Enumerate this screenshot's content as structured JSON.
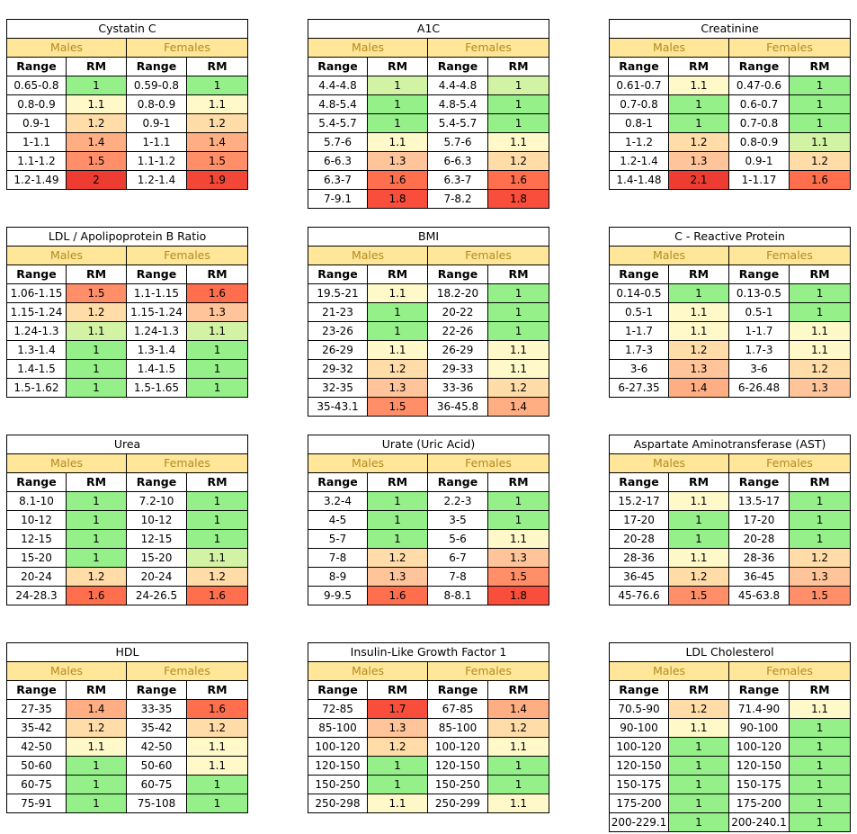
{
  "labels": {
    "males": "Males",
    "females": "Females",
    "range": "Range",
    "rm": "RM"
  },
  "colors": {
    "header_band": "#ffe699",
    "header_text": "#b58b1f",
    "rm_1": "#96f08a",
    "rm_light_green": "#d3f3a4",
    "rm_1_1": "#fff8c8",
    "rm_1_2": "#ffdca8",
    "rm_1_3": "#ffc49a",
    "rm_1_4": "#ffae83",
    "rm_1_5": "#ff8e69",
    "rm_1_6": "#ff6f4e",
    "rm_1_8": "#f84e3b",
    "rm_2": "#ee3c32"
  },
  "tables": [
    {
      "title": "Cystatin C",
      "rows": [
        {
          "mr": "0.65-0.8",
          "mv": "1",
          "fr": "0.59-0.8",
          "fv": "1"
        },
        {
          "mr": "0.8-0.9",
          "mv": "1.1",
          "fr": "0.8-0.9",
          "fv": "1.1"
        },
        {
          "mr": "0.9-1",
          "mv": "1.2",
          "fr": "0.9-1",
          "fv": "1.2"
        },
        {
          "mr": "1-1.1",
          "mv": "1.4",
          "fr": "1-1.1",
          "fv": "1.4"
        },
        {
          "mr": "1.1-1.2",
          "mv": "1.5",
          "fr": "1.1-1.2",
          "fv": "1.5"
        },
        {
          "mr": "1.2-1.49",
          "mv": "2",
          "fr": "1.2-1.4",
          "fv": "1.9"
        }
      ]
    },
    {
      "title": "A1C",
      "rows": [
        {
          "mr": "4.4-4.8",
          "mv": "1",
          "fr": "4.4-4.8",
          "fv": "1"
        },
        {
          "mr": "4.8-5.4",
          "mv": "1",
          "fr": "4.8-5.4",
          "fv": "1"
        },
        {
          "mr": "5.4-5.7",
          "mv": "1",
          "fr": "5.4-5.7",
          "fv": "1"
        },
        {
          "mr": "5.7-6",
          "mv": "1.1",
          "fr": "5.7-6",
          "fv": "1.1"
        },
        {
          "mr": "6-6.3",
          "mv": "1.3",
          "fr": "6-6.3",
          "fv": "1.2"
        },
        {
          "mr": "6.3-7",
          "mv": "1.6",
          "fr": "6.3-7",
          "fv": "1.6"
        },
        {
          "mr": "7-9.1",
          "mv": "1.8",
          "fr": "7-8.2",
          "fv": "1.8"
        }
      ]
    },
    {
      "title": "Creatinine",
      "rows": [
        {
          "mr": "0.61-0.7",
          "mv": "1.1",
          "fr": "0.47-0.6",
          "fv": "1"
        },
        {
          "mr": "0.7-0.8",
          "mv": "1",
          "fr": "0.6-0.7",
          "fv": "1"
        },
        {
          "mr": "0.8-1",
          "mv": "1",
          "fr": "0.7-0.8",
          "fv": "1"
        },
        {
          "mr": "1-1.2",
          "mv": "1.2",
          "fr": "0.8-0.9",
          "fv": "1.1"
        },
        {
          "mr": "1.2-1.4",
          "mv": "1.3",
          "fr": "0.9-1",
          "fv": "1.2"
        },
        {
          "mr": "1.4-1.48",
          "mv": "2.1",
          "fr": "1-1.17",
          "fv": "1.6"
        }
      ]
    },
    {
      "title": "LDL / Apolipoprotein B Ratio",
      "rows": [
        {
          "mr": "1.06-1.15",
          "mv": "1.5",
          "fr": "1.1-1.15",
          "fv": "1.6"
        },
        {
          "mr": "1.15-1.24",
          "mv": "1.2",
          "fr": "1.15-1.24",
          "fv": "1.3"
        },
        {
          "mr": "1.24-1.3",
          "mv": "1.1",
          "fr": "1.24-1.3",
          "fv": "1.1"
        },
        {
          "mr": "1.3-1.4",
          "mv": "1",
          "fr": "1.3-1.4",
          "fv": "1"
        },
        {
          "mr": "1.4-1.5",
          "mv": "1",
          "fr": "1.4-1.5",
          "fv": "1"
        },
        {
          "mr": "1.5-1.62",
          "mv": "1",
          "fr": "1.5-1.65",
          "fv": "1"
        }
      ]
    },
    {
      "title": "BMI",
      "rows": [
        {
          "mr": "19.5-21",
          "mv": "1.1",
          "fr": "18.2-20",
          "fv": "1"
        },
        {
          "mr": "21-23",
          "mv": "1",
          "fr": "20-22",
          "fv": "1"
        },
        {
          "mr": "23-26",
          "mv": "1",
          "fr": "22-26",
          "fv": "1"
        },
        {
          "mr": "26-29",
          "mv": "1.1",
          "fr": "26-29",
          "fv": "1.1"
        },
        {
          "mr": "29-32",
          "mv": "1.2",
          "fr": "29-33",
          "fv": "1.1"
        },
        {
          "mr": "32-35",
          "mv": "1.3",
          "fr": "33-36",
          "fv": "1.2"
        },
        {
          "mr": "35-43.1",
          "mv": "1.5",
          "fr": "36-45.8",
          "fv": "1.4"
        }
      ]
    },
    {
      "title": "C - Reactive Protein",
      "rows": [
        {
          "mr": "0.14-0.5",
          "mv": "1",
          "fr": "0.13-0.5",
          "fv": "1"
        },
        {
          "mr": "0.5-1",
          "mv": "1.1",
          "fr": "0.5-1",
          "fv": "1"
        },
        {
          "mr": "1-1.7",
          "mv": "1.1",
          "fr": "1-1.7",
          "fv": "1.1"
        },
        {
          "mr": "1.7-3",
          "mv": "1.2",
          "fr": "1.7-3",
          "fv": "1.1"
        },
        {
          "mr": "3-6",
          "mv": "1.3",
          "fr": "3-6",
          "fv": "1.2"
        },
        {
          "mr": "6-27.35",
          "mv": "1.4",
          "fr": "6-26.48",
          "fv": "1.3"
        }
      ]
    },
    {
      "title": "Urea",
      "rows": [
        {
          "mr": "8.1-10",
          "mv": "1",
          "fr": "7.2-10",
          "fv": "1"
        },
        {
          "mr": "10-12",
          "mv": "1",
          "fr": "10-12",
          "fv": "1"
        },
        {
          "mr": "12-15",
          "mv": "1",
          "fr": "12-15",
          "fv": "1"
        },
        {
          "mr": "15-20",
          "mv": "1",
          "fr": "15-20",
          "fv": "1.1"
        },
        {
          "mr": "20-24",
          "mv": "1.2",
          "fr": "20-24",
          "fv": "1.2"
        },
        {
          "mr": "24-28.3",
          "mv": "1.6",
          "fr": "24-26.5",
          "fv": "1.6"
        }
      ]
    },
    {
      "title": "Urate (Uric Acid)",
      "rows": [
        {
          "mr": "3.2-4",
          "mv": "1",
          "fr": "2.2-3",
          "fv": "1"
        },
        {
          "mr": "4-5",
          "mv": "1",
          "fr": "3-5",
          "fv": "1"
        },
        {
          "mr": "5-7",
          "mv": "1",
          "fr": "5-6",
          "fv": "1.1"
        },
        {
          "mr": "7-8",
          "mv": "1.2",
          "fr": "6-7",
          "fv": "1.3"
        },
        {
          "mr": "8-9",
          "mv": "1.3",
          "fr": "7-8",
          "fv": "1.5"
        },
        {
          "mr": "9-9.5",
          "mv": "1.6",
          "fr": "8-8.1",
          "fv": "1.8"
        }
      ]
    },
    {
      "title": "Aspartate Aminotransferase (AST)",
      "rows": [
        {
          "mr": "15.2-17",
          "mv": "1.1",
          "fr": "13.5-17",
          "fv": "1"
        },
        {
          "mr": "17-20",
          "mv": "1",
          "fr": "17-20",
          "fv": "1"
        },
        {
          "mr": "20-28",
          "mv": "1",
          "fr": "20-28",
          "fv": "1"
        },
        {
          "mr": "28-36",
          "mv": "1.1",
          "fr": "28-36",
          "fv": "1.2"
        },
        {
          "mr": "36-45",
          "mv": "1.2",
          "fr": "36-45",
          "fv": "1.3"
        },
        {
          "mr": "45-76.6",
          "mv": "1.5",
          "fr": "45-63.8",
          "fv": "1.5"
        }
      ]
    },
    {
      "title": "HDL",
      "rows": [
        {
          "mr": "27-35",
          "mv": "1.4",
          "fr": "33-35",
          "fv": "1.6"
        },
        {
          "mr": "35-42",
          "mv": "1.2",
          "fr": "35-42",
          "fv": "1.2"
        },
        {
          "mr": "42-50",
          "mv": "1.1",
          "fr": "42-50",
          "fv": "1.1"
        },
        {
          "mr": "50-60",
          "mv": "1",
          "fr": "50-60",
          "fv": "1.1"
        },
        {
          "mr": "60-75",
          "mv": "1",
          "fr": "60-75",
          "fv": "1"
        },
        {
          "mr": "75-91",
          "mv": "1",
          "fr": "75-108",
          "fv": "1"
        }
      ]
    },
    {
      "title": "Insulin-Like Growth Factor 1",
      "rows": [
        {
          "mr": "72-85",
          "mv": "1.7",
          "fr": "67-85",
          "fv": "1.4"
        },
        {
          "mr": "85-100",
          "mv": "1.3",
          "fr": "85-100",
          "fv": "1.2"
        },
        {
          "mr": "100-120",
          "mv": "1.2",
          "fr": "100-120",
          "fv": "1.1"
        },
        {
          "mr": "120-150",
          "mv": "1",
          "fr": "120-150",
          "fv": "1"
        },
        {
          "mr": "150-250",
          "mv": "1",
          "fr": "150-250",
          "fv": "1"
        },
        {
          "mr": "250-298",
          "mv": "1.1",
          "fr": "250-299",
          "fv": "1.1"
        }
      ]
    },
    {
      "title": "LDL Cholesterol",
      "rows": [
        {
          "mr": "70.5-90",
          "mv": "1.2",
          "fr": "71.4-90",
          "fv": "1.1"
        },
        {
          "mr": "90-100",
          "mv": "1.1",
          "fr": "90-100",
          "fv": "1"
        },
        {
          "mr": "100-120",
          "mv": "1",
          "fr": "100-120",
          "fv": "1"
        },
        {
          "mr": "120-150",
          "mv": "1",
          "fr": "120-150",
          "fv": "1"
        },
        {
          "mr": "150-175",
          "mv": "1",
          "fr": "150-175",
          "fv": "1"
        },
        {
          "mr": "175-200",
          "mv": "1",
          "fr": "175-200",
          "fv": "1"
        },
        {
          "mr": "200-229.1",
          "mv": "1",
          "fr": "200-240.1",
          "fv": "1"
        }
      ]
    }
  ]
}
